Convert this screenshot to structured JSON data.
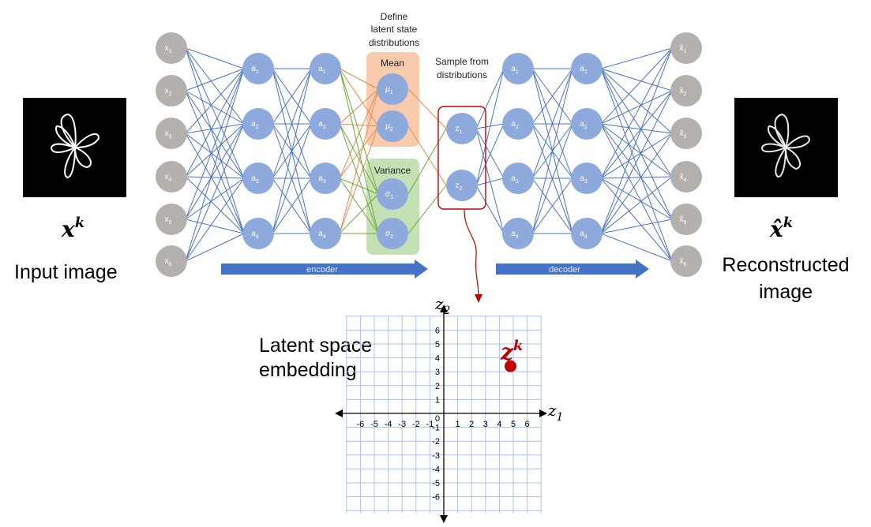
{
  "input_label": "Input image",
  "input_symbol_base": "x",
  "input_symbol_sup": "k",
  "output_label_line1": "Reconstructed",
  "output_label_line2": "image",
  "output_symbol_base": "x̂",
  "output_symbol_sup": "k",
  "define_label": [
    "Define",
    "latent state",
    "distributions"
  ],
  "mean_label": "Mean",
  "variance_label": "Variance",
  "sample_label": [
    "Sample from",
    "distributions"
  ],
  "encoder_label": "encoder",
  "decoder_label": "decoder",
  "latent_label": [
    "Latent space",
    "embedding"
  ],
  "z_point_base": "z",
  "z_point_sup": "k",
  "axis_x_label": "z",
  "axis_x_sub": "1",
  "axis_y_label": "z",
  "axis_y_sub": "2",
  "input_nodes": [
    {
      "base": "x",
      "sub": "1"
    },
    {
      "base": "x",
      "sub": "2"
    },
    {
      "base": "x",
      "sub": "3"
    },
    {
      "base": "x",
      "sub": "4"
    },
    {
      "base": "x",
      "sub": "5"
    },
    {
      "base": "x",
      "sub": "6"
    }
  ],
  "hidden_nodes": [
    {
      "base": "a",
      "sub": "1"
    },
    {
      "base": "a",
      "sub": "2"
    },
    {
      "base": "a",
      "sub": "3"
    },
    {
      "base": "a",
      "sub": "4"
    }
  ],
  "mean_nodes": [
    {
      "base": "μ",
      "sub": "1"
    },
    {
      "base": "μ",
      "sub": "2"
    }
  ],
  "var_nodes": [
    {
      "base": "σ",
      "sub": "1"
    },
    {
      "base": "σ",
      "sub": "2"
    }
  ],
  "z_nodes": [
    {
      "base": "z",
      "sub": "1"
    },
    {
      "base": "z",
      "sub": "2"
    }
  ],
  "output_nodes": [
    {
      "base": "x̂",
      "sub": "1"
    },
    {
      "base": "x̂",
      "sub": "2"
    },
    {
      "base": "x̂",
      "sub": "3"
    },
    {
      "base": "x̂",
      "sub": "4"
    },
    {
      "base": "x̂",
      "sub": "5"
    },
    {
      "base": "x̂",
      "sub": "6"
    }
  ],
  "x_ticks": [
    "-6",
    "-5",
    "-4",
    "-3",
    "-2",
    "-1",
    "1",
    "2",
    "3",
    "4",
    "5",
    "6"
  ],
  "y_ticks": [
    "6",
    "5",
    "4",
    "3",
    "2",
    "1",
    "-1",
    "-2",
    "-3",
    "-4",
    "-5",
    "-6"
  ],
  "origin_label": "0",
  "latent_point": {
    "z1": 4.8,
    "z2": 3.4
  },
  "colors": {
    "node_gray": "#b4b0ad",
    "node_blue": "#8ea9dc",
    "edge_blue": "#4a72c4",
    "edge_orange": "#e8894a",
    "edge_green": "#6aaa3c",
    "mean_box": "#f8cbad",
    "var_box": "#c5e0b4",
    "arrow_blue": "#4472c4",
    "dark_red": "#c00000",
    "grid": "#a9c4e8"
  }
}
